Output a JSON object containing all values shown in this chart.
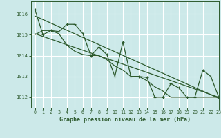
{
  "title": "Graphe pression niveau de la mer (hPa)",
  "bg_color": "#cce9e9",
  "grid_color": "#ffffff",
  "line_color": "#2d5a2d",
  "xlim": [
    -0.5,
    23
  ],
  "ylim": [
    1011.5,
    1016.6
  ],
  "yticks": [
    1012,
    1013,
    1014,
    1015,
    1016
  ],
  "xticks": [
    0,
    1,
    2,
    3,
    4,
    5,
    6,
    7,
    8,
    9,
    10,
    11,
    12,
    13,
    14,
    15,
    16,
    17,
    18,
    19,
    20,
    21,
    22,
    23
  ],
  "series1_x": [
    0,
    1,
    2,
    3,
    4,
    5,
    6,
    7,
    8,
    9,
    10,
    11,
    12,
    13,
    14,
    15,
    16,
    17,
    18,
    19,
    20,
    21,
    22,
    23
  ],
  "series1_y": [
    1016.2,
    1015.0,
    1015.2,
    1015.15,
    1015.5,
    1015.5,
    1015.05,
    1014.0,
    1014.4,
    1014.05,
    1013.0,
    1014.65,
    1013.0,
    1013.0,
    1012.95,
    1012.0,
    1012.0,
    1012.65,
    1012.45,
    1012.0,
    1012.0,
    1013.3,
    1013.0,
    1012.0
  ],
  "series2_x": [
    0,
    1,
    2,
    3,
    4,
    5,
    6,
    7,
    8,
    9,
    10,
    11,
    12,
    13,
    14,
    15,
    16,
    17,
    18,
    19,
    20,
    21,
    22,
    23
  ],
  "series2_y": [
    1015.0,
    1015.2,
    1015.2,
    1015.05,
    1014.5,
    1014.2,
    1014.05,
    1014.0,
    1014.0,
    1013.8,
    1013.5,
    1013.3,
    1013.0,
    1013.0,
    1012.8,
    1012.5,
    1012.3,
    1012.0,
    1012.0,
    1012.0,
    1012.0,
    1012.0,
    1012.0,
    1012.0
  ],
  "series3_x": [
    0,
    23
  ],
  "series3_y": [
    1015.9,
    1011.95
  ],
  "series4_x": [
    0,
    23
  ],
  "series4_y": [
    1015.05,
    1012.0
  ]
}
